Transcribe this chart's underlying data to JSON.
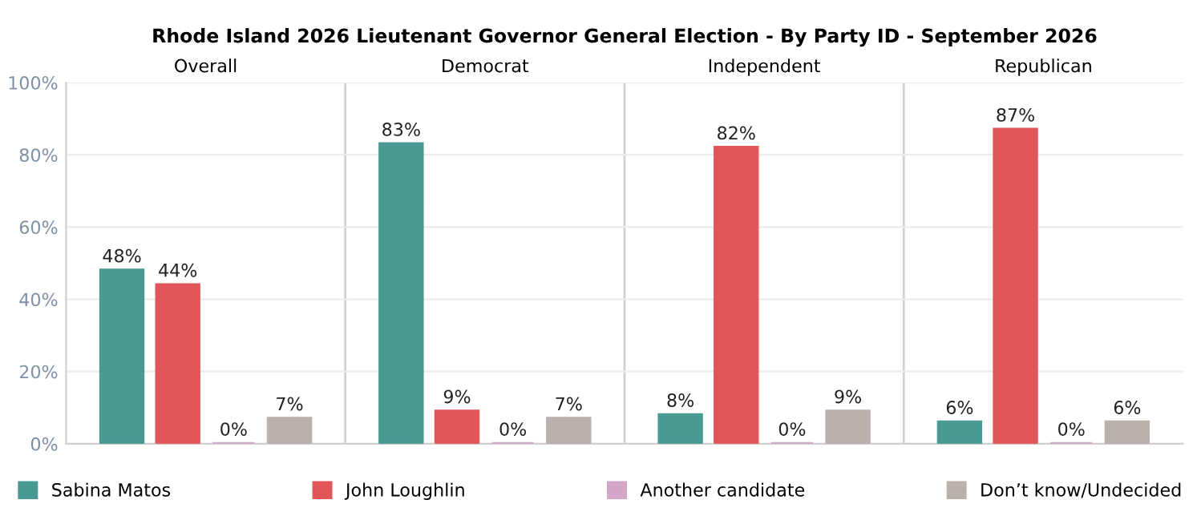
{
  "chart_data": {
    "type": "bar",
    "title": "Rhode Island 2026 Lieutenant Governor General Election - By Party ID - September 2026",
    "categories": [
      "Overall",
      "Democrat",
      "Independent",
      "Republican"
    ],
    "ylim": [
      0,
      100
    ],
    "yticks": [
      {
        "value": 0,
        "label": "0%"
      },
      {
        "value": 20,
        "label": "20%"
      },
      {
        "value": 40,
        "label": "40%"
      },
      {
        "value": 60,
        "label": "60%"
      },
      {
        "value": 80,
        "label": "80%"
      },
      {
        "value": 100,
        "label": "100%"
      }
    ],
    "grid": "y",
    "legend": "bottom",
    "series": [
      {
        "name": "Sabina Matos",
        "color": "#4a9a94",
        "values": [
          48,
          83,
          8,
          6
        ],
        "value_labels": [
          "48%",
          "83%",
          "8%",
          "6%"
        ]
      },
      {
        "name": "John Loughlin",
        "color": "#e15759",
        "values": [
          44,
          9,
          82,
          87
        ],
        "value_labels": [
          "44%",
          "9%",
          "82%",
          "87%"
        ]
      },
      {
        "name": "Another candidate",
        "color": "#d4a6c8",
        "values": [
          0,
          0,
          0,
          0
        ],
        "value_labels": [
          "0%",
          "0%",
          "0%",
          "0%"
        ]
      },
      {
        "name": "Don’t know/Undecided",
        "color": "#bab0ac",
        "values": [
          7,
          7,
          9,
          6
        ],
        "value_labels": [
          "7%",
          "7%",
          "9%",
          "6%"
        ]
      }
    ]
  }
}
